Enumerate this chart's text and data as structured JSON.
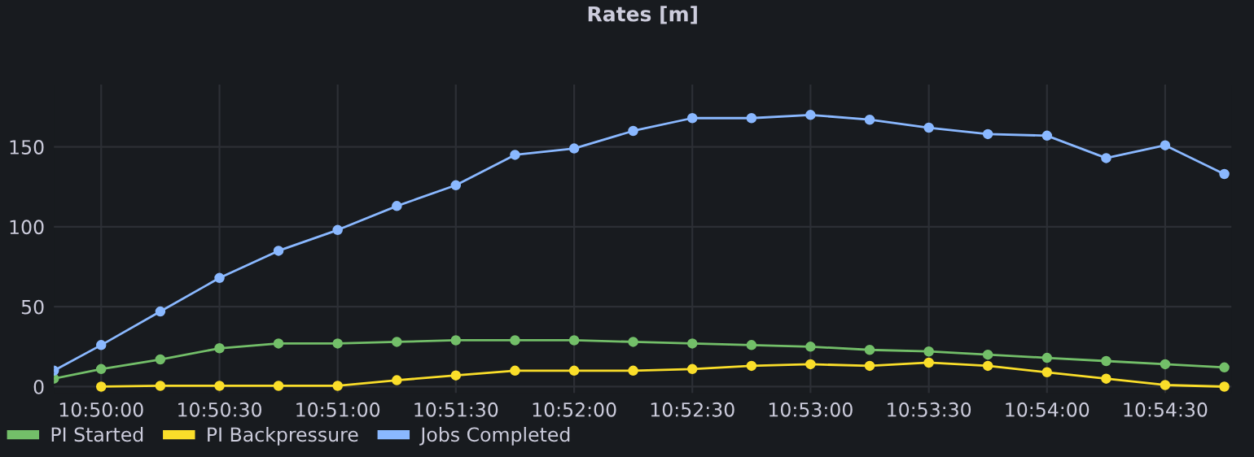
{
  "chart_data": {
    "type": "line",
    "title": "Rates [m]",
    "x": [
      10.83,
      10.83333,
      10.8375,
      10.84167,
      10.84583,
      10.85,
      10.85417,
      10.85833,
      10.8625,
      10.86667,
      10.87083,
      10.875,
      10.87917,
      10.88333,
      10.8875,
      10.89167,
      10.89583,
      10.9,
      10.90417,
      10.90833,
      10.9125
    ],
    "series": [
      {
        "name": "PI Started",
        "color": "#73bf69",
        "values": [
          5,
          11,
          17,
          24,
          27,
          27,
          28,
          29,
          29,
          29,
          28,
          27,
          26,
          25,
          23,
          22,
          20,
          18,
          16,
          14,
          12
        ]
      },
      {
        "name": "PI Backpressure",
        "color": "#fade2a",
        "values": [
          null,
          0,
          0.5,
          0.5,
          0.5,
          0.5,
          4,
          7,
          10,
          10,
          10,
          11,
          13,
          14,
          13,
          15,
          13,
          9,
          5,
          1,
          0
        ]
      },
      {
        "name": "Jobs Completed",
        "color": "#8ab8ff",
        "values": [
          10,
          26,
          47,
          68,
          85,
          98,
          113,
          126,
          145,
          149,
          160,
          168,
          168,
          170,
          167,
          162,
          158,
          157,
          143,
          151,
          133
        ]
      }
    ],
    "xlim": [
      10.83,
      10.913
    ],
    "xticks": [
      {
        "value": 10.83333,
        "label": "10:50:00"
      },
      {
        "value": 10.84167,
        "label": "10:50:30"
      },
      {
        "value": 10.85,
        "label": "10:51:00"
      },
      {
        "value": 10.85833,
        "label": "10:51:30"
      },
      {
        "value": 10.86667,
        "label": "10:52:00"
      },
      {
        "value": 10.875,
        "label": "10:52:30"
      },
      {
        "value": 10.88333,
        "label": "10:53:00"
      },
      {
        "value": 10.89167,
        "label": "10:53:30"
      },
      {
        "value": 10.9,
        "label": "10:54:00"
      },
      {
        "value": 10.90833,
        "label": "10:54:30"
      }
    ],
    "ylim": [
      -4,
      189
    ],
    "yticks": [
      0,
      50,
      100,
      150
    ],
    "grid": true,
    "legend": "bottom left",
    "marker": "circle",
    "line_style": "solid"
  }
}
